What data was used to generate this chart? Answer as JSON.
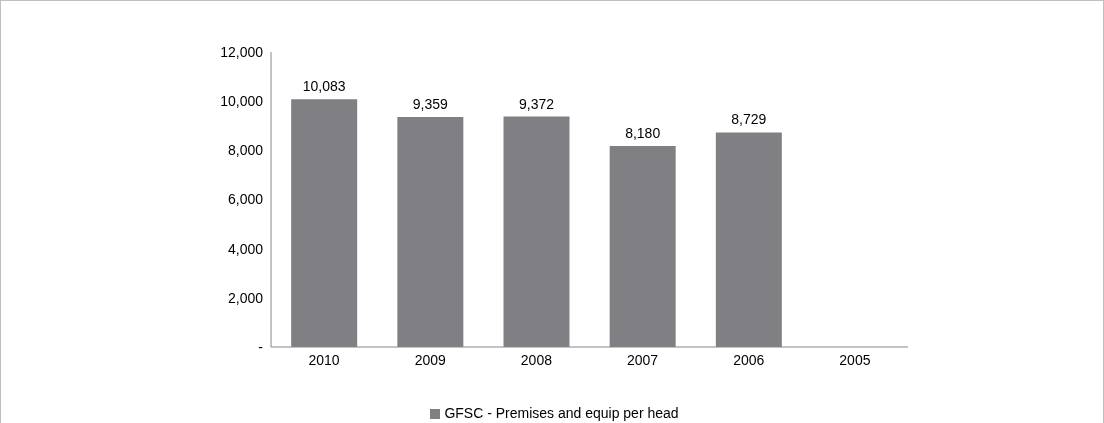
{
  "chart_data": {
    "type": "bar",
    "categories": [
      "2010",
      "2009",
      "2008",
      "2007",
      "2006",
      "2005"
    ],
    "series": [
      {
        "name": "GFSC - Premises and equip per head",
        "color": "#807f83",
        "values": [
          10083,
          9359,
          9372,
          8180,
          8729,
          null
        ],
        "value_labels": [
          "10,083",
          "9,359",
          "9,372",
          "8,180",
          "8,729",
          null
        ]
      }
    ],
    "ylim": [
      0,
      12000
    ],
    "yticks": [
      {
        "value": 0,
        "label": "-"
      },
      {
        "value": 2000,
        "label": "2,000"
      },
      {
        "value": 4000,
        "label": "4,000"
      },
      {
        "value": 6000,
        "label": "6,000"
      },
      {
        "value": 8000,
        "label": "8,000"
      },
      {
        "value": 10000,
        "label": "10,000"
      },
      {
        "value": 12000,
        "label": "12,000"
      }
    ],
    "grid": false,
    "legend": "bottom"
  }
}
